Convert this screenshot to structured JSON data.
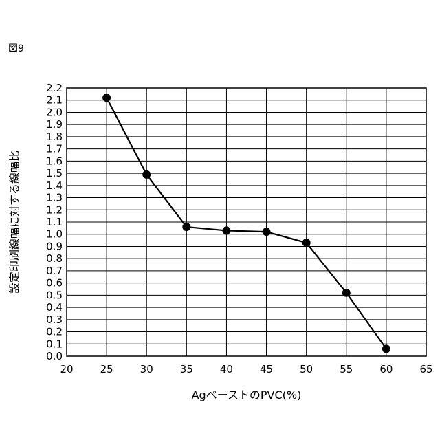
{
  "figure_label": "図9",
  "chart_data": {
    "type": "line",
    "title": "",
    "xlabel": "AgペーストのPVC(%)",
    "ylabel": "設定印刷線幅に対する線幅比",
    "xlim": [
      20,
      65
    ],
    "ylim": [
      0.0,
      2.2
    ],
    "x_ticks": [
      "20",
      "25",
      "30",
      "35",
      "40",
      "45",
      "50",
      "55",
      "60",
      "65"
    ],
    "y_ticks": [
      "0.0",
      "0.1",
      "0.2",
      "0.3",
      "0.4",
      "0.5",
      "0.6",
      "0.7",
      "0.8",
      "0.9",
      "1.0",
      "1.1",
      "1.2",
      "1.3",
      "1.4",
      "1.5",
      "1.6",
      "1.7",
      "1.8",
      "1.9",
      "2.0",
      "2.1",
      "2.2"
    ],
    "grid": true,
    "series": [
      {
        "x": [
          25,
          30,
          35,
          40,
          45,
          50,
          55,
          60
        ],
        "y": [
          2.12,
          1.49,
          1.06,
          1.03,
          1.02,
          0.93,
          0.52,
          0.06
        ],
        "color": "#000000",
        "marker": "circle"
      }
    ]
  }
}
